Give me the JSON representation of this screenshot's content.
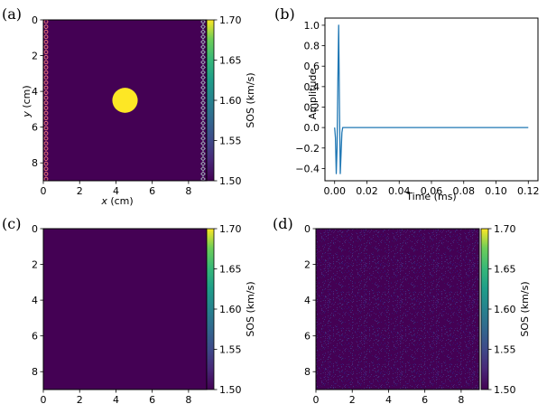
{
  "chart_data": [
    {
      "type": "heatmap",
      "panel_label": "(a)",
      "xlabel_var": "x",
      "xlabel_unit": " (cm)",
      "ylabel_var": "y",
      "ylabel_unit": " (cm)",
      "xlim": [
        0,
        9
      ],
      "ylim": [
        9,
        0
      ],
      "xticks": [
        "0",
        "2",
        "4",
        "6",
        "8"
      ],
      "yticks": [
        "0",
        "2",
        "4",
        "6",
        "8"
      ],
      "background_sos": 1.5,
      "inclusion": {
        "center_x": 4.5,
        "center_y": 4.5,
        "radius": 0.7,
        "sos": 1.7
      },
      "sources": {
        "x": 0.15,
        "y_from": 0.1,
        "y_to": 8.9,
        "count": 32,
        "color": "#e8757a"
      },
      "receivers": {
        "x": 8.8,
        "y_from": 0.1,
        "y_to": 8.9,
        "count": 32,
        "color": "#9aa7b3"
      },
      "colorbar": {
        "label": "SOS (km/s)",
        "range": [
          1.5,
          1.7
        ],
        "ticks": [
          "1.70",
          "1.65",
          "1.60",
          "1.55",
          "1.50"
        ]
      }
    },
    {
      "type": "line",
      "panel_label": "(b)",
      "xlabel": "Time (ms)",
      "ylabel": "Amplitude",
      "xlim": [
        -0.006,
        0.126
      ],
      "ylim": [
        -0.52,
        1.07
      ],
      "xticks": [
        "0.00",
        "0.02",
        "0.04",
        "0.06",
        "0.08",
        "0.10",
        "0.12"
      ],
      "yticks": [
        "1.0",
        "0.8",
        "0.6",
        "0.4",
        "0.2",
        "0.0",
        "-0.2",
        "-0.4"
      ],
      "color": "#1f77b4",
      "x": [
        0.0,
        0.0005,
        0.001,
        0.0015,
        0.002,
        0.0025,
        0.003,
        0.0035,
        0.004,
        0.0045,
        0.005,
        0.006,
        0.12
      ],
      "y": [
        0.0,
        -0.1,
        -0.45,
        -0.2,
        0.45,
        1.0,
        0.2,
        -0.45,
        -0.25,
        -0.05,
        0.0,
        0.0,
        0.0
      ]
    },
    {
      "type": "heatmap",
      "panel_label": "(c)",
      "xlim": [
        0,
        9
      ],
      "ylim": [
        9,
        0
      ],
      "xticks": [
        "0",
        "2",
        "4",
        "6",
        "8"
      ],
      "yticks": [
        "0",
        "2",
        "4",
        "6",
        "8"
      ],
      "background_sos": 1.5,
      "colorbar": {
        "label": "SOS (km/s)",
        "range": [
          1.5,
          1.7
        ],
        "ticks": [
          "1.70",
          "1.65",
          "1.60",
          "1.55",
          "1.50"
        ]
      }
    },
    {
      "type": "heatmap",
      "panel_label": "(d)",
      "xlim": [
        0,
        9
      ],
      "ylim": [
        9,
        0
      ],
      "xticks": [
        "0",
        "2",
        "4",
        "6",
        "8"
      ],
      "yticks": [
        "0",
        "2",
        "4",
        "6",
        "8"
      ],
      "background_sos": 1.5,
      "noise": "random speckle",
      "colorbar": {
        "label": "SOS (km/s)",
        "range": [
          1.5,
          1.7
        ],
        "ticks": [
          "1.70",
          "1.65",
          "1.60",
          "1.55",
          "1.50"
        ]
      }
    }
  ],
  "colors": {
    "low": "#440154",
    "high": "#fde725"
  }
}
